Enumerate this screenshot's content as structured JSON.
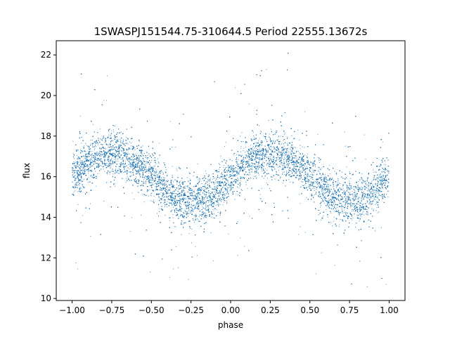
{
  "chart_data": {
    "type": "scatter",
    "title": "1SWASPJ151544.75-310644.5 Period 22555.13672s",
    "xlabel": "phase",
    "ylabel": "flux",
    "xlim": [
      -1.1,
      1.1
    ],
    "ylim": [
      9.9,
      22.7
    ],
    "xticks": [
      -1.0,
      -0.75,
      -0.5,
      -0.25,
      0.0,
      0.25,
      0.5,
      0.75,
      1.0
    ],
    "xtick_labels": [
      "−1.00",
      "−0.75",
      "−0.50",
      "−0.25",
      "0.00",
      "0.25",
      "0.50",
      "0.75",
      "1.00"
    ],
    "yticks": [
      10,
      12,
      14,
      16,
      18,
      20,
      22
    ],
    "ytick_labels": [
      "10",
      "12",
      "14",
      "16",
      "18",
      "20",
      "22"
    ],
    "grid": false,
    "point_color": "#1f77b4",
    "series": [
      {
        "model": "folded sinusoidal light curve",
        "points_per_unit_phase": 10000,
        "phase_range": [
          -1.0,
          1.0
        ],
        "mean_flux": 15.95,
        "amplitude": 1.2,
        "peak_phases": [
          -0.75,
          0.25
        ],
        "trough_phases": [
          -0.25,
          0.75
        ],
        "scatter_sigma": 0.55,
        "outlier_fraction": 0.08,
        "outlier_flux_range": [
          10.5,
          22.5
        ],
        "x": [
          -1.0,
          -0.875,
          -0.75,
          -0.625,
          -0.5,
          -0.375,
          -0.25,
          -0.125,
          0.0,
          0.125,
          0.25,
          0.375,
          0.5,
          0.625,
          0.75,
          0.875,
          1.0
        ],
        "y": [
          16.0,
          16.8,
          17.2,
          16.8,
          16.0,
          15.2,
          14.8,
          15.2,
          16.0,
          16.8,
          17.2,
          16.8,
          16.0,
          15.2,
          14.8,
          15.2,
          16.0
        ]
      }
    ]
  }
}
